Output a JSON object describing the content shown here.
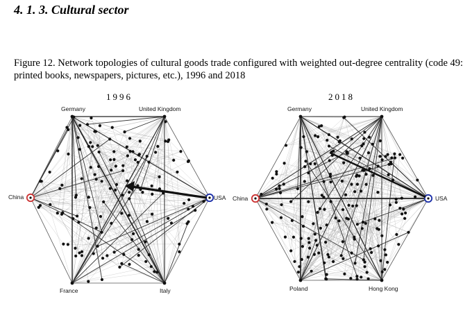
{
  "section": {
    "heading": "4. 1. 3. Cultural sector"
  },
  "figure": {
    "caption": "Figure 12. Network topologies of cultural goods trade configured with weighted out-degree centrality (code 49: printed books, newspapers, pictures, etc.), 1996 and 2018"
  },
  "networks": [
    {
      "year": "1996",
      "nodes": {
        "top_left": "Germany",
        "top_right": "United Kingdom",
        "left": "China",
        "right": "USA",
        "bottom_left": "France",
        "bottom_right": "Italy"
      },
      "highlight": {
        "china": "#cc3333",
        "usa": "#1a2ea8"
      }
    },
    {
      "year": "2018",
      "nodes": {
        "top_left": "Germany",
        "top_right": "United Kingdom",
        "left": "China",
        "right": "USA",
        "bottom_left": "Poland",
        "bottom_right": "Hong Kong"
      },
      "highlight": {
        "china": "#cc3333",
        "usa": "#1a2ea8"
      }
    }
  ]
}
